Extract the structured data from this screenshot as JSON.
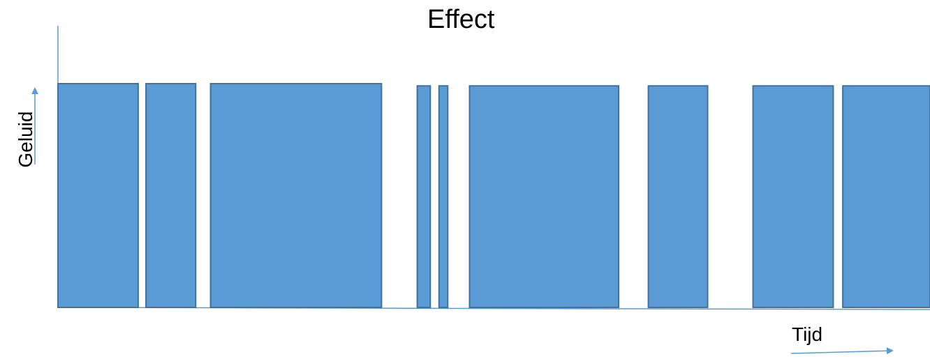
{
  "chart_data": {
    "type": "bar",
    "title": "Effect",
    "xlabel": "Tijd",
    "ylabel": "Geluid",
    "grid": false,
    "legend": "none",
    "bar_color": "#5B9BD5",
    "bar_edge_color": "#41719C",
    "axis_color": "#5B9BD5",
    "y_relative_range": [
      0,
      1
    ],
    "segments": [
      {
        "start": 0.0,
        "end": 0.092,
        "level": 1.0
      },
      {
        "start": 0.101,
        "end": 0.158,
        "level": 1.0
      },
      {
        "start": 0.175,
        "end": 0.371,
        "level": 1.0
      },
      {
        "start": 0.412,
        "end": 0.427,
        "level": 0.99
      },
      {
        "start": 0.437,
        "end": 0.447,
        "level": 0.99
      },
      {
        "start": 0.472,
        "end": 0.643,
        "level": 0.99
      },
      {
        "start": 0.677,
        "end": 0.745,
        "level": 0.99
      },
      {
        "start": 0.797,
        "end": 0.889,
        "level": 0.99
      },
      {
        "start": 0.9,
        "end": 1.0,
        "level": 0.99
      }
    ]
  }
}
